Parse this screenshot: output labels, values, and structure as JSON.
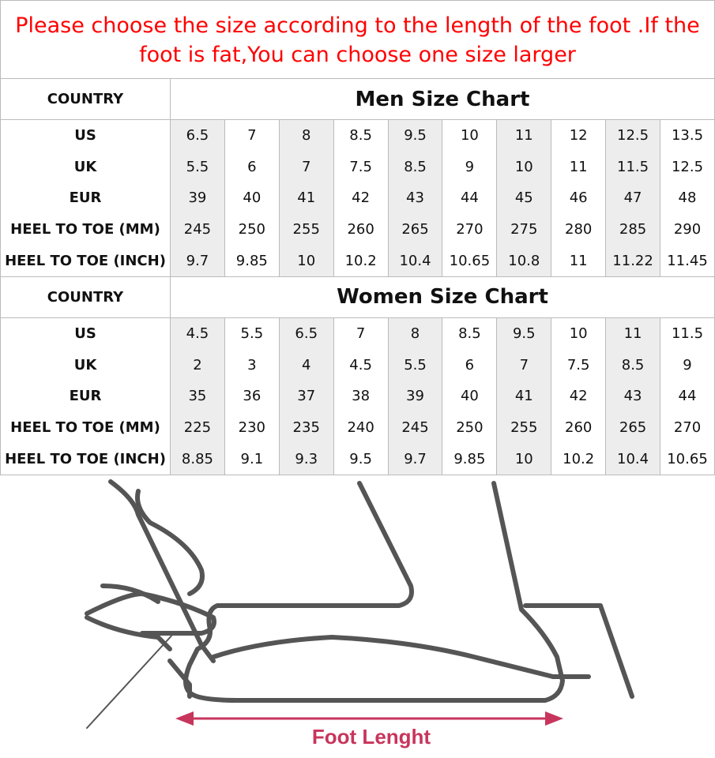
{
  "notice": "Please choose the size according to the length of the foot .If the foot is fat,You can choose one size larger",
  "men": {
    "country_label": "COUNTRY",
    "title": "Men Size Chart",
    "rows": [
      {
        "label": "US",
        "values": [
          "6.5",
          "7",
          "8",
          "8.5",
          "9.5",
          "10",
          "11",
          "12",
          "12.5",
          "13.5"
        ]
      },
      {
        "label": "UK",
        "values": [
          "5.5",
          "6",
          "7",
          "7.5",
          "8.5",
          "9",
          "10",
          "11",
          "11.5",
          "12.5"
        ]
      },
      {
        "label": "EUR",
        "values": [
          "39",
          "40",
          "41",
          "42",
          "43",
          "44",
          "45",
          "46",
          "47",
          "48"
        ]
      },
      {
        "label": "HEEL TO TOE (MM)",
        "values": [
          "245",
          "250",
          "255",
          "260",
          "265",
          "270",
          "275",
          "280",
          "285",
          "290"
        ]
      },
      {
        "label": "HEEL TO TOE (INCH)",
        "values": [
          "9.7",
          "9.85",
          "10",
          "10.2",
          "10.4",
          "10.65",
          "10.8",
          "11",
          "11.22",
          "11.45"
        ]
      }
    ]
  },
  "women": {
    "country_label": "COUNTRY",
    "title": "Women Size Chart",
    "rows": [
      {
        "label": "US",
        "values": [
          "4.5",
          "5.5",
          "6.5",
          "7",
          "8",
          "8.5",
          "9.5",
          "10",
          "11",
          "11.5"
        ]
      },
      {
        "label": "UK",
        "values": [
          "2",
          "3",
          "4",
          "4.5",
          "5.5",
          "6",
          "7",
          "7.5",
          "8.5",
          "9"
        ]
      },
      {
        "label": "EUR",
        "values": [
          "35",
          "36",
          "37",
          "38",
          "39",
          "40",
          "41",
          "42",
          "43",
          "44"
        ]
      },
      {
        "label": "HEEL TO TOE (MM)",
        "values": [
          "225",
          "230",
          "235",
          "240",
          "245",
          "250",
          "255",
          "260",
          "265",
          "270"
        ]
      },
      {
        "label": "HEEL TO TOE (INCH)",
        "values": [
          "8.85",
          "9.1",
          "9.3",
          "9.5",
          "9.7",
          "9.85",
          "10",
          "10.2",
          "10.4",
          "10.65"
        ]
      }
    ]
  },
  "illustration": {
    "caption": "Foot Lenght",
    "accent": "#c8355c"
  }
}
